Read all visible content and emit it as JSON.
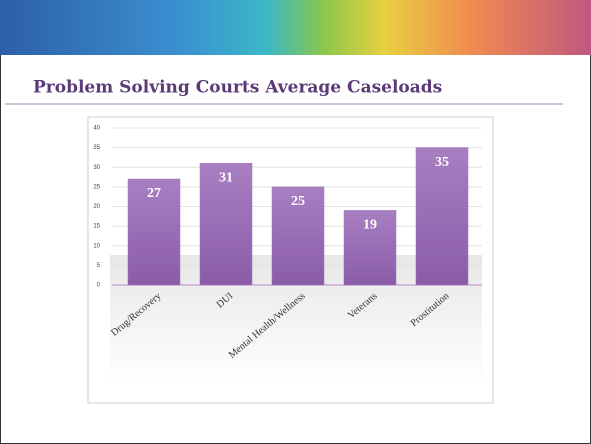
{
  "chart_data": {
    "type": "bar",
    "title": "Problem Solving Courts Average Caseloads",
    "categories": [
      "Drug/Recovery",
      "DUI",
      "Mental Health/Wellness",
      "Veterans",
      "Prostitution"
    ],
    "values": [
      27,
      31,
      25,
      19,
      35
    ],
    "color": "#9e72b8",
    "ylim": [
      0,
      40
    ],
    "yticks": [
      0,
      5,
      10,
      15,
      20,
      25,
      30,
      35,
      40
    ],
    "grid": true
  }
}
